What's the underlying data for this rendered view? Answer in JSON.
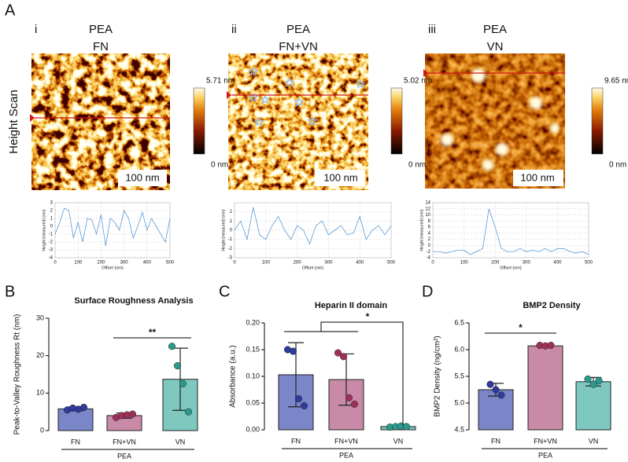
{
  "figure": {
    "panel_labels": [
      "A",
      "B",
      "C",
      "D"
    ],
    "row_label": "Height Scan"
  },
  "afm": [
    {
      "numeral": "i",
      "substrate": "PEA",
      "coating": "FN",
      "scale_bar": "100 nm",
      "colorbar_max": "5.71 nm",
      "colorbar_min": "0 nm"
    },
    {
      "numeral": "ii",
      "substrate": "PEA",
      "coating": "FN+VN",
      "scale_bar": "100 nm",
      "colorbar_max": "5.02 nm",
      "colorbar_min": "0 nm"
    },
    {
      "numeral": "iii",
      "substrate": "PEA",
      "coating": "VN",
      "scale_bar": "100 nm",
      "colorbar_max": "9.65 nm",
      "colorbar_min": "0 nm"
    }
  ],
  "chart_data": [
    {
      "type": "line",
      "x_label": "Offset (nm)",
      "y_label": "Height (measured) (nm)",
      "x": [
        0,
        20,
        40,
        60,
        80,
        100,
        120,
        140,
        160,
        180,
        200,
        220,
        240,
        260,
        280,
        300,
        320,
        340,
        360,
        380,
        400,
        420,
        440,
        460,
        480,
        500
      ],
      "series": [
        {
          "color": "#5b9bd5",
          "values": [
            -1,
            0.5,
            2.3,
            2,
            -1.5,
            0.5,
            -2,
            1,
            0.8,
            -1,
            1.5,
            -2.5,
            1,
            0.5,
            -0.5,
            2,
            1,
            -1.5,
            0,
            1.8,
            -0.5,
            1,
            0,
            -1,
            -2,
            1
          ]
        }
      ],
      "xlim": [
        0,
        500
      ],
      "xticks": [
        0,
        100,
        200,
        300,
        400,
        500
      ],
      "ylim": [
        -4,
        3
      ],
      "yticks": [
        -4,
        -3,
        -2,
        -1,
        0,
        1,
        2,
        3
      ],
      "grid": true
    },
    {
      "type": "line",
      "x_label": "Offset (nm)",
      "y_label": "Height (measured) (nm)",
      "x": [
        0,
        20,
        40,
        60,
        80,
        100,
        120,
        140,
        160,
        180,
        200,
        220,
        240,
        260,
        280,
        300,
        320,
        340,
        360,
        380,
        400,
        420,
        440,
        460,
        480,
        500
      ],
      "series": [
        {
          "color": "#5b9bd5",
          "values": [
            0,
            1,
            -1,
            2.5,
            -0.5,
            -1,
            0.5,
            1.5,
            0,
            -1,
            0.5,
            0,
            -1.5,
            0.5,
            1,
            -0.5,
            0,
            0.5,
            -0.5,
            -0.3,
            1.5,
            -1,
            0,
            0.5,
            -0.5,
            0.5
          ]
        }
      ],
      "xlim": [
        0,
        500
      ],
      "xticks": [
        0,
        100,
        200,
        300,
        400,
        500
      ],
      "ylim": [
        -3,
        3
      ],
      "yticks": [
        -3,
        -2,
        -1,
        0,
        1,
        2
      ],
      "grid": true
    },
    {
      "type": "line",
      "x_label": "Offset (nm)",
      "y_label": "Height (measured) (nm)",
      "x": [
        0,
        20,
        40,
        60,
        80,
        100,
        120,
        140,
        160,
        180,
        200,
        220,
        240,
        260,
        280,
        300,
        320,
        340,
        360,
        380,
        400,
        420,
        440,
        460,
        480,
        500
      ],
      "series": [
        {
          "color": "#5b9bd5",
          "values": [
            -2,
            -2,
            -2.5,
            -2,
            -1.5,
            -1.5,
            -3,
            -2,
            -1,
            12,
            6,
            -1,
            -2,
            -2,
            -1,
            -2,
            -1.5,
            -2,
            -1,
            -2,
            -1,
            -1,
            -2,
            -2.5,
            -2,
            -3
          ]
        }
      ],
      "xlim": [
        0,
        500
      ],
      "xticks": [
        0,
        100,
        200,
        300,
        400,
        500
      ],
      "ylim": [
        -4,
        14
      ],
      "yticks": [
        -4,
        -2,
        0,
        2,
        4,
        6,
        8,
        10,
        12,
        14
      ],
      "grid": true
    },
    {
      "type": "bar",
      "title": "Surface Roughness Analysis",
      "y_label": "Peak-to-Valley Roughness Rt (nm)",
      "categories": [
        "FN",
        "FN+VN",
        "VN"
      ],
      "group_label": "PEA",
      "values": [
        5.8,
        4.0,
        13.7
      ],
      "errors": [
        0.5,
        0.7,
        8.3
      ],
      "colors": [
        "#7b86c8",
        "#c98aa8",
        "#7ec8c0"
      ],
      "point_colors": [
        "#2f3b9c",
        "#a0305a",
        "#2a9a8c"
      ],
      "points": [
        [
          5.5,
          6.0,
          5.7,
          6.2
        ],
        [
          3.5,
          4.0,
          4.2,
          4.4
        ],
        [
          22.5,
          17.3,
          12.5,
          5.0
        ]
      ],
      "ylim": [
        0,
        30
      ],
      "yticks": [
        0,
        10,
        20,
        30
      ],
      "significance": [
        "**"
      ]
    },
    {
      "type": "bar",
      "title": "Heparin II domain",
      "y_label": "Absorbance (a.u.)",
      "categories": [
        "FN",
        "FN+VN",
        "VN"
      ],
      "group_label": "PEA",
      "values": [
        0.103,
        0.094,
        0.006
      ],
      "errors": [
        0.06,
        0.048,
        0.002
      ],
      "colors": [
        "#7b86c8",
        "#c98aa8",
        "#7ec8c0"
      ],
      "point_colors": [
        "#2f3b9c",
        "#a0305a",
        "#2a9a8c"
      ],
      "points": [
        [
          0.15,
          0.147,
          0.058,
          0.045
        ],
        [
          0.144,
          0.137,
          0.06,
          0.048
        ],
        [
          0.005,
          0.006,
          0.007,
          0.006
        ]
      ],
      "ylim": [
        0,
        0.2
      ],
      "yticks": [
        {
          "value": 0,
          "label": "0.00"
        },
        {
          "value": 0.05,
          "label": "0.05"
        },
        {
          "value": 0.1,
          "label": "0.10"
        },
        {
          "value": 0.15,
          "label": "0.15"
        },
        {
          "value": 0.2,
          "label": "0.20"
        }
      ],
      "significance": [
        "*"
      ]
    },
    {
      "type": "bar",
      "title": "BMP2 Density",
      "y_label": "BMP2 Density (ng/cm²)",
      "categories": [
        "FN",
        "FN+VN",
        "VN"
      ],
      "group_label": "PEA",
      "values": [
        5.25,
        6.07,
        5.4
      ],
      "errors": [
        0.12,
        0.02,
        0.08
      ],
      "colors": [
        "#7b86c8",
        "#c98aa8",
        "#7ec8c0"
      ],
      "point_colors": [
        "#2f3b9c",
        "#a0305a",
        "#2a9a8c"
      ],
      "points": [
        [
          5.35,
          5.25,
          5.15
        ],
        [
          6.08,
          6.07,
          6.08
        ],
        [
          5.45,
          5.35,
          5.42
        ]
      ],
      "ylim": [
        4.5,
        6.5
      ],
      "yticks": [
        4.5,
        {
          "value": 5,
          "label": "5.0"
        },
        5.5,
        {
          "value": 6,
          "label": "6.0"
        },
        6.5
      ],
      "significance": [
        "*"
      ]
    }
  ]
}
